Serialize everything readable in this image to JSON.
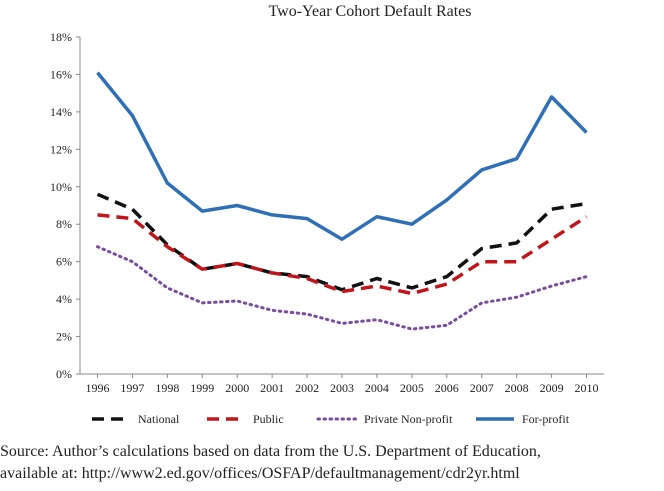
{
  "chart_data": {
    "type": "line",
    "title": "Two-Year Cohort Default Rates",
    "xlabel": "",
    "ylabel": "",
    "x": [
      "1996",
      "1997",
      "1998",
      "1999",
      "2000",
      "2001",
      "2002",
      "2003",
      "2004",
      "2005",
      "2006",
      "2007",
      "2008",
      "2009",
      "2010"
    ],
    "y_ticks": [
      "0%",
      "2%",
      "4%",
      "6%",
      "8%",
      "10%",
      "12%",
      "14%",
      "16%",
      "18%"
    ],
    "ylim": [
      0,
      18
    ],
    "grid": false,
    "legend_position": "bottom",
    "series": [
      {
        "name": "National",
        "color": "#111111",
        "style": "dashed",
        "values": [
          9.6,
          8.8,
          6.9,
          5.6,
          5.9,
          5.4,
          5.2,
          4.5,
          5.1,
          4.6,
          5.2,
          6.7,
          7.0,
          8.8,
          9.1
        ]
      },
      {
        "name": "Public",
        "color": "#c0161b",
        "style": "dashed",
        "values": [
          8.5,
          8.3,
          6.8,
          5.6,
          5.9,
          5.4,
          5.1,
          4.4,
          4.7,
          4.3,
          4.8,
          6.0,
          6.0,
          7.2,
          8.4
        ]
      },
      {
        "name": "Private Non-profit",
        "color": "#7b4c9e",
        "style": "dotted",
        "values": [
          6.8,
          6.0,
          4.6,
          3.8,
          3.9,
          3.4,
          3.2,
          2.7,
          2.9,
          2.4,
          2.6,
          3.8,
          4.1,
          4.7,
          5.2
        ]
      },
      {
        "name": "For-profit",
        "color": "#2e6fb5",
        "style": "solid",
        "values": [
          16.1,
          13.8,
          10.2,
          8.7,
          9.0,
          8.5,
          8.3,
          7.2,
          8.4,
          8.0,
          9.3,
          10.9,
          11.5,
          14.8,
          12.9
        ]
      }
    ]
  },
  "source": {
    "line1": "Source: Author’s calculations based on data from the U.S. Department of Education,",
    "line2": "available at: http://www2.ed.gov/offices/OSFAP/defaultmanagement/cdr2yr.html"
  }
}
